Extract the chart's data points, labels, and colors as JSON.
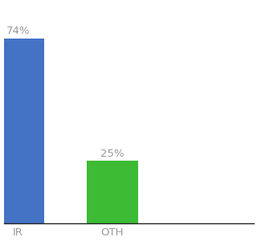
{
  "categories": [
    "IR",
    "OTH"
  ],
  "values": [
    74,
    25
  ],
  "bar_colors": [
    "#4472c4",
    "#3dbb35"
  ],
  "labels": [
    "74%",
    "25%"
  ],
  "ylim": [
    0,
    88
  ],
  "background_color": "#ffffff",
  "label_color": "#999999",
  "label_fontsize": 9.5,
  "tick_fontsize": 9.5,
  "bar_width": 0.55,
  "xlim": [
    -0.15,
    2.5
  ]
}
